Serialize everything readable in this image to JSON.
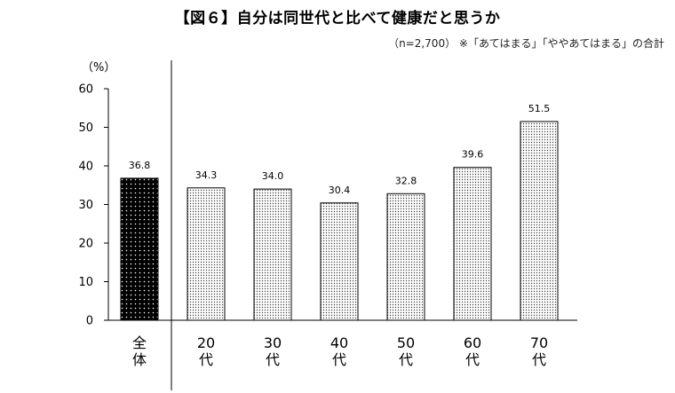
{
  "chart_data": {
    "type": "bar",
    "title": "【図６】自分は同世代と比べて健康だと思うか",
    "note": "（n=2,700） ※「あてはまる」「ややあてはまる」の合計",
    "ylabel": "（%）",
    "ylim": [
      0,
      60
    ],
    "yticks": [
      0,
      10,
      20,
      30,
      40,
      50,
      60
    ],
    "categories": [
      [
        "全",
        "体"
      ],
      [
        "20",
        "代"
      ],
      [
        "30",
        "代"
      ],
      [
        "40",
        "代"
      ],
      [
        "50",
        "代"
      ],
      [
        "60",
        "代"
      ],
      [
        "70",
        "代"
      ]
    ],
    "values": [
      36.8,
      34.3,
      34.0,
      30.4,
      32.8,
      39.6,
      51.5
    ],
    "value_labels": [
      "36.8",
      "34.3",
      "34.0",
      "30.4",
      "32.8",
      "39.6",
      "51.5"
    ],
    "highlight_index": 0,
    "grid": false
  },
  "colors": {
    "highlight_fill": "#000000",
    "highlight_dot": "#ffffff",
    "bar_fill": "#ffffff",
    "bar_dot": "#444444",
    "axis": "#000000"
  }
}
